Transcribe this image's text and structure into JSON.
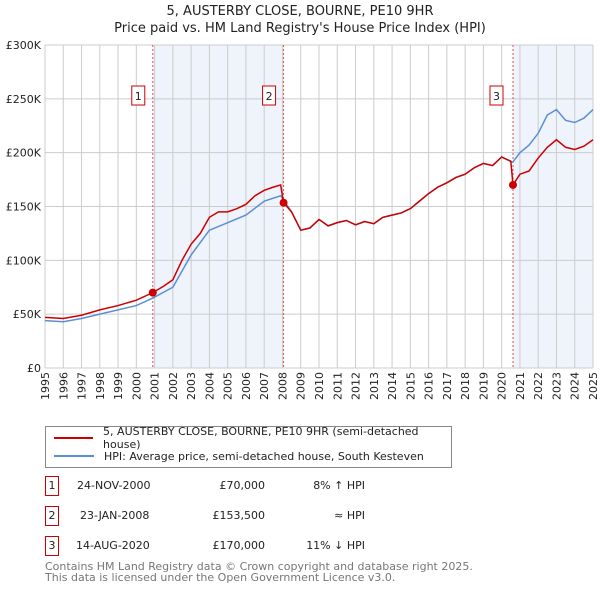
{
  "title": "5, AUSTERBY CLOSE, BOURNE, PE10 9HR",
  "subtitle": "Price paid vs. HM Land Registry's House Price Index (HPI)",
  "chart_data": {
    "type": "line",
    "xlim": [
      1995,
      2025
    ],
    "ylim": [
      0,
      300000
    ],
    "yticks": [
      0,
      50000,
      100000,
      150000,
      200000,
      250000,
      300000
    ],
    "ytick_labels": [
      "£0",
      "£50K",
      "£100K",
      "£150K",
      "£200K",
      "£250K",
      "£300K"
    ],
    "xticks": [
      1995,
      1996,
      1997,
      1998,
      1999,
      2000,
      2001,
      2002,
      2003,
      2004,
      2005,
      2006,
      2007,
      2008,
      2009,
      2010,
      2011,
      2012,
      2013,
      2014,
      2015,
      2016,
      2017,
      2018,
      2019,
      2020,
      2021,
      2022,
      2023,
      2024,
      2025
    ],
    "grid": true,
    "series": [
      {
        "name": "5, AUSTERBY CLOSE, BOURNE, PE10 9HR (semi-detached house)",
        "color": "#cc0000",
        "x": [
          1995,
          1996,
          1997,
          1998,
          1999,
          2000,
          2000.9,
          2001.5,
          2002,
          2002.5,
          2003,
          2003.5,
          2004,
          2004.5,
          2005,
          2005.5,
          2006,
          2006.5,
          2007,
          2007.5,
          2007.9,
          2008.06,
          2008.5,
          2009,
          2009.5,
          2010,
          2010.5,
          2011,
          2011.5,
          2012,
          2012.5,
          2013,
          2013.5,
          2014,
          2014.5,
          2015,
          2015.5,
          2016,
          2016.5,
          2017,
          2017.5,
          2018,
          2018.5,
          2019,
          2019.5,
          2020,
          2020.5,
          2020.62,
          2021,
          2021.5,
          2022,
          2022.5,
          2023,
          2023.5,
          2024,
          2024.5,
          2025
        ],
        "y": [
          47000,
          46000,
          49000,
          54000,
          58000,
          63000,
          70000,
          76000,
          82000,
          100000,
          115000,
          125000,
          140000,
          145000,
          145000,
          148000,
          152000,
          160000,
          165000,
          168000,
          170000,
          153500,
          145000,
          128000,
          130000,
          138000,
          132000,
          135000,
          137000,
          133000,
          136000,
          134000,
          140000,
          142000,
          144000,
          148000,
          155000,
          162000,
          168000,
          172000,
          177000,
          180000,
          186000,
          190000,
          188000,
          196000,
          192000,
          170000,
          180000,
          183000,
          195000,
          205000,
          212000,
          205000,
          203000,
          206000,
          212000
        ]
      },
      {
        "name": "HPI: Average price, semi-detached house, South Kesteven",
        "color": "#5b8fd4",
        "x": [
          1995,
          1996,
          1997,
          1998,
          1999,
          2000,
          2000.9,
          2002,
          2003,
          2004,
          2005,
          2006,
          2007,
          2007.9,
          2008.5,
          2009,
          2009.5,
          2010,
          2010.5,
          2011,
          2011.5,
          2012,
          2012.5,
          2013,
          2013.5,
          2014,
          2014.5,
          2015,
          2015.5,
          2016,
          2016.5,
          2017,
          2017.5,
          2018,
          2018.5,
          2019,
          2019.5,
          2020,
          2020.6,
          2021,
          2021.5,
          2022,
          2022.5,
          2023,
          2023.5,
          2024,
          2024.5,
          2025
        ],
        "y": [
          44000,
          43000,
          46000,
          50000,
          54000,
          58000,
          65000,
          75000,
          105000,
          128000,
          135000,
          142000,
          155000,
          160000,
          145000,
          128000,
          130000,
          138000,
          132000,
          135000,
          137000,
          133000,
          136000,
          134000,
          140000,
          142000,
          144000,
          148000,
          155000,
          162000,
          168000,
          172000,
          177000,
          180000,
          186000,
          190000,
          188000,
          196000,
          191000,
          200000,
          207000,
          218000,
          235000,
          240000,
          230000,
          228000,
          232000,
          240000
        ]
      }
    ],
    "annotations": [
      {
        "label": "1",
        "x": 2000.9,
        "y": 70000
      },
      {
        "label": "2",
        "x": 2008.06,
        "y": 153500
      },
      {
        "label": "3",
        "x": 2020.62,
        "y": 170000
      }
    ],
    "shaded": [
      [
        2000.9,
        2008.06
      ],
      [
        2020.62,
        2025
      ]
    ]
  },
  "legend": [
    "5, AUSTERBY CLOSE, BOURNE, PE10 9HR (semi-detached house)",
    "HPI: Average price, semi-detached house, South Kesteven"
  ],
  "transactions": [
    {
      "num": "1",
      "date": "24-NOV-2000",
      "price": "£70,000",
      "hpi": "8% ↑ HPI"
    },
    {
      "num": "2",
      "date": "23-JAN-2008",
      "price": "£153,500",
      "hpi": "≈ HPI"
    },
    {
      "num": "3",
      "date": "14-AUG-2020",
      "price": "£170,000",
      "hpi": "11% ↓ HPI"
    }
  ],
  "footer": [
    "Contains HM Land Registry data © Crown copyright and database right 2025.",
    "This data is licensed under the Open Government Licence v3.0."
  ]
}
